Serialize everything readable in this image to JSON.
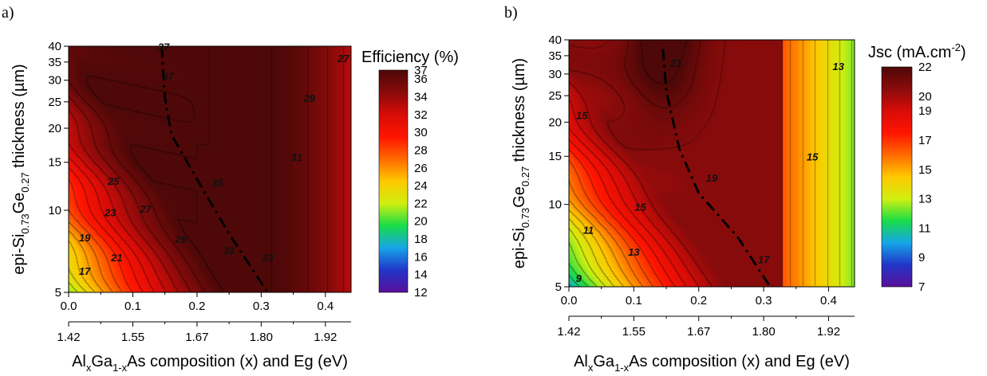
{
  "chart_data": [
    {
      "type": "heatmap",
      "panel_label": "a)",
      "colorbar_title": "Efficiency (%)",
      "colorbar_ticks": [
        12,
        14,
        16,
        18,
        20,
        22,
        24,
        26,
        28,
        30,
        32,
        34,
        36,
        37
      ],
      "color_range": [
        12,
        37
      ],
      "x_range": [
        0.0,
        0.44
      ],
      "x_ticks": [
        "0.0",
        "0.1",
        "0.2",
        "0.3",
        "0.4"
      ],
      "x_tick_values": [
        0.0,
        0.1,
        0.2,
        0.3,
        0.4
      ],
      "x2_ticks": [
        "1.42",
        "1.55",
        "1.67",
        "1.80",
        "1.92"
      ],
      "x2_tick_values": [
        0.0,
        0.1,
        0.2,
        0.3,
        0.4
      ],
      "y_scale": "log",
      "y_range": [
        5,
        40
      ],
      "y_ticks": [
        "5",
        "10",
        "15",
        "20",
        "25",
        "30",
        "35",
        "40"
      ],
      "y_tick_values": [
        5,
        10,
        15,
        20,
        25,
        30,
        35,
        40
      ],
      "optimum_line": [
        [
          0.145,
          40
        ],
        [
          0.15,
          26
        ],
        [
          0.16,
          19
        ],
        [
          0.2,
          13
        ],
        [
          0.25,
          8.2
        ],
        [
          0.31,
          5
        ]
      ],
      "contour_labels": [
        {
          "text": "37",
          "x": 0.148,
          "y": 38.5
        },
        {
          "text": "37",
          "x": 0.155,
          "y": 30
        },
        {
          "text": "27",
          "x": 0.428,
          "y": 35
        },
        {
          "text": "29",
          "x": 0.375,
          "y": 25
        },
        {
          "text": "31",
          "x": 0.355,
          "y": 15.2
        },
        {
          "text": "35",
          "x": 0.232,
          "y": 12.2
        },
        {
          "text": "25",
          "x": 0.07,
          "y": 12.4
        },
        {
          "text": "23",
          "x": 0.065,
          "y": 9.5
        },
        {
          "text": "27",
          "x": 0.12,
          "y": 9.8
        },
        {
          "text": "19",
          "x": 0.025,
          "y": 7.7
        },
        {
          "text": "21",
          "x": 0.075,
          "y": 6.5
        },
        {
          "text": "29",
          "x": 0.175,
          "y": 7.6
        },
        {
          "text": "31",
          "x": 0.25,
          "y": 6.9
        },
        {
          "text": "33",
          "x": 0.31,
          "y": 6.5
        },
        {
          "text": "17",
          "x": 0.025,
          "y": 5.8
        }
      ]
    },
    {
      "type": "heatmap",
      "panel_label": "b)",
      "colorbar_title": "Jsc (mA.cm",
      "colorbar_title_sup": "-2",
      "colorbar_title_end": ")",
      "colorbar_ticks": [
        7,
        9,
        11,
        13,
        15,
        17,
        19,
        20,
        22
      ],
      "color_range": [
        7,
        22
      ],
      "x_range": [
        0.0,
        0.44
      ],
      "x_ticks": [
        "0.0",
        "0.1",
        "0.2",
        "0.3",
        "0.4"
      ],
      "x_tick_values": [
        0.0,
        0.1,
        0.2,
        0.3,
        0.4
      ],
      "x2_ticks": [
        "1.42",
        "1.55",
        "1.67",
        "1.80",
        "1.92"
      ],
      "x2_tick_values": [
        0.0,
        0.1,
        0.2,
        0.3,
        0.4
      ],
      "y_scale": "log",
      "y_range": [
        5,
        40
      ],
      "y_ticks": [
        "5",
        "10",
        "15",
        "20",
        "25",
        "30",
        "35",
        "40"
      ],
      "y_tick_values": [
        5,
        10,
        15,
        20,
        25,
        30,
        35,
        40
      ],
      "optimum_line": [
        [
          0.145,
          37
        ],
        [
          0.15,
          26
        ],
        [
          0.17,
          16
        ],
        [
          0.2,
          11
        ],
        [
          0.26,
          7.6
        ],
        [
          0.31,
          5
        ]
      ],
      "contour_labels": [
        {
          "text": "21",
          "x": 0.165,
          "y": 32
        },
        {
          "text": "13",
          "x": 0.415,
          "y": 31
        },
        {
          "text": "15",
          "x": 0.02,
          "y": 20.5
        },
        {
          "text": "15",
          "x": 0.375,
          "y": 14.5
        },
        {
          "text": "19",
          "x": 0.22,
          "y": 12.1
        },
        {
          "text": "15",
          "x": 0.11,
          "y": 9.5
        },
        {
          "text": "11",
          "x": 0.03,
          "y": 7.8
        },
        {
          "text": "13",
          "x": 0.1,
          "y": 6.5
        },
        {
          "text": "17",
          "x": 0.3,
          "y": 6.1
        },
        {
          "text": "9",
          "x": 0.015,
          "y": 5.2
        }
      ]
    }
  ],
  "y_title": {
    "pre": "epi-Si",
    "sub1": "0.73",
    "mid": "Ge",
    "sub2": "0.27",
    "post": "  thickness (µm)"
  },
  "x_title": {
    "pre": "Al",
    "sub1": "x",
    "mid": "Ga",
    "sub2": "1-x",
    "post": "As composition (x) and Eg (eV)"
  },
  "palette": [
    "#5a0f9a",
    "#2136c8",
    "#16a5e8",
    "#18dd48",
    "#d0ef10",
    "#ffc800",
    "#ff6a00",
    "#ff1400",
    "#d80c08",
    "#8a0b0b",
    "#4e0808"
  ]
}
